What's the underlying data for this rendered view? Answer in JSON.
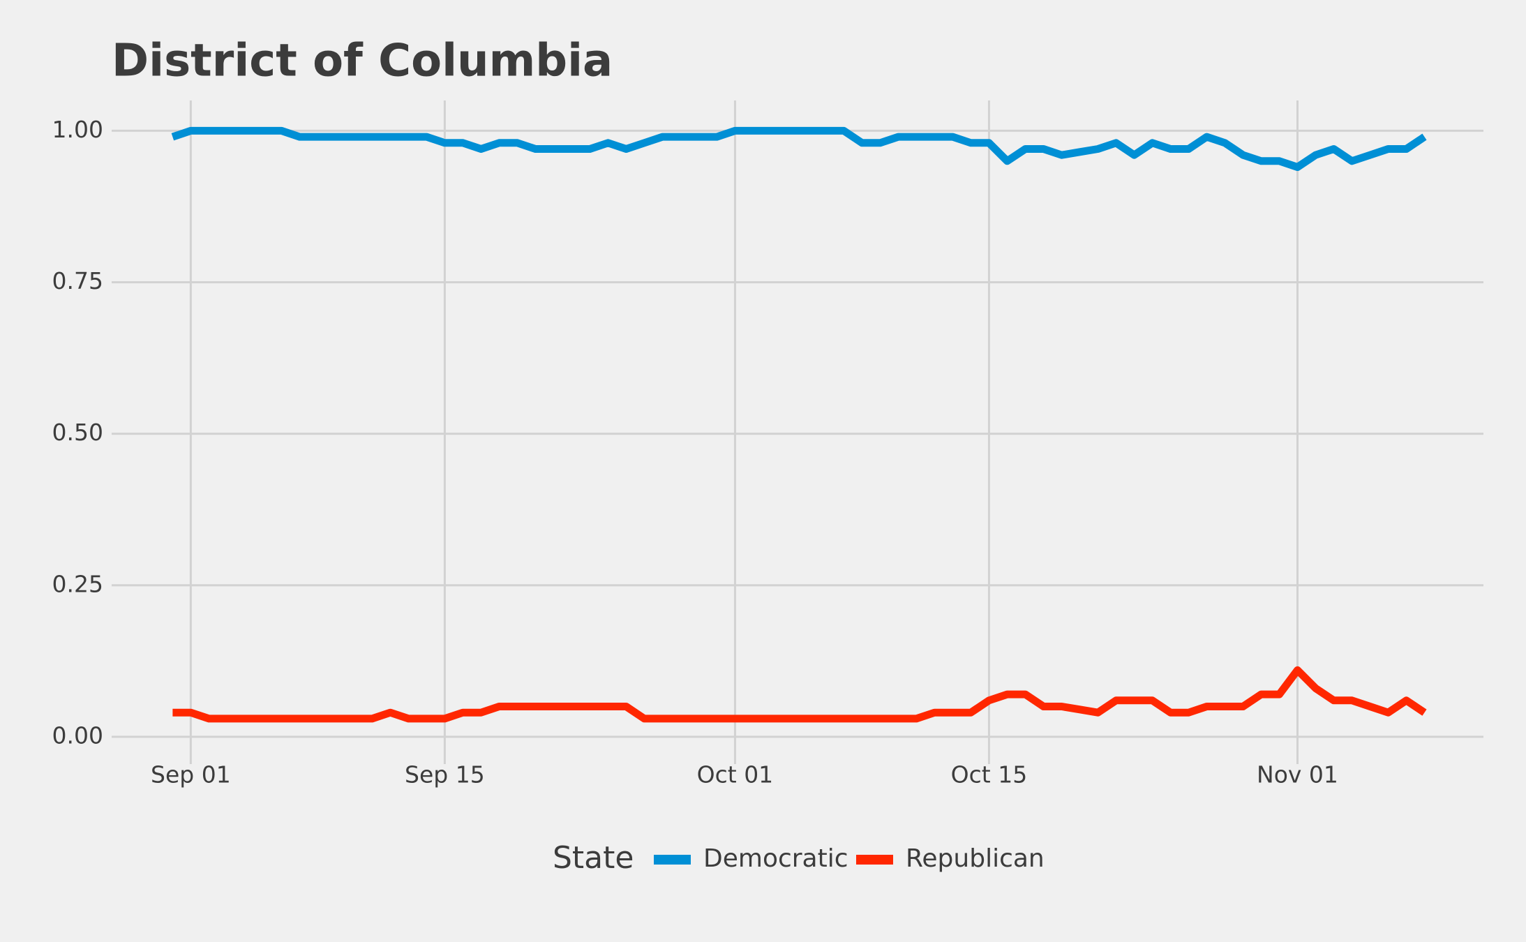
{
  "chart_data": {
    "type": "line",
    "title": "District of Columbia",
    "x": [
      "Aug 31",
      "Sep 01",
      "Sep 02",
      "Sep 03",
      "Sep 04",
      "Sep 05",
      "Sep 06",
      "Sep 07",
      "Sep 08",
      "Sep 09",
      "Sep 10",
      "Sep 11",
      "Sep 12",
      "Sep 13",
      "Sep 14",
      "Sep 15",
      "Sep 16",
      "Sep 17",
      "Sep 18",
      "Sep 19",
      "Sep 20",
      "Sep 21",
      "Sep 22",
      "Sep 23",
      "Sep 24",
      "Sep 25",
      "Sep 26",
      "Sep 27",
      "Sep 28",
      "Sep 29",
      "Sep 30",
      "Oct 01",
      "Oct 02",
      "Oct 03",
      "Oct 04",
      "Oct 05",
      "Oct 06",
      "Oct 07",
      "Oct 08",
      "Oct 09",
      "Oct 10",
      "Oct 11",
      "Oct 12",
      "Oct 13",
      "Oct 14",
      "Oct 15",
      "Oct 16",
      "Oct 17",
      "Oct 18",
      "Oct 19",
      "Oct 20",
      "Oct 21",
      "Oct 22",
      "Oct 23",
      "Oct 24",
      "Oct 25",
      "Oct 26",
      "Oct 27",
      "Oct 28",
      "Oct 29",
      "Oct 30",
      "Oct 31",
      "Nov 01",
      "Nov 02",
      "Nov 03",
      "Nov 04",
      "Nov 05",
      "Nov 06",
      "Nov 07",
      "Nov 08"
    ],
    "xticks": [
      "Sep 01",
      "Sep 15",
      "Oct 01",
      "Oct 15",
      "Nov 01"
    ],
    "series": [
      {
        "name": "Democratic",
        "color": "#008fd5",
        "values": [
          0.99,
          1,
          1,
          1,
          1,
          1,
          1,
          0.99,
          0.99,
          0.99,
          0.99,
          0.99,
          0.99,
          0.99,
          0.99,
          0.98,
          0.98,
          0.97,
          0.98,
          0.98,
          0.97,
          0.97,
          0.97,
          0.97,
          0.98,
          0.97,
          0.98,
          0.99,
          0.99,
          0.99,
          0.99,
          1,
          1,
          1,
          1,
          1,
          1,
          1,
          0.98,
          0.98,
          0.99,
          0.99,
          0.99,
          0.99,
          0.98,
          0.98,
          0.95,
          0.97,
          0.97,
          0.96,
          0.965,
          0.97,
          0.98,
          0.96,
          0.98,
          0.97,
          0.97,
          0.99,
          0.98,
          0.96,
          0.95,
          0.95,
          0.94,
          0.96,
          0.97,
          0.95,
          0.96,
          0.97,
          0.97,
          0.99
        ]
      },
      {
        "name": "Republican",
        "color": "#ff2700",
        "values": [
          0.04,
          0.04,
          0.03,
          0.03,
          0.03,
          0.03,
          0.03,
          0.03,
          0.03,
          0.03,
          0.03,
          0.03,
          0.04,
          0.03,
          0.03,
          0.03,
          0.04,
          0.04,
          0.05,
          0.05,
          0.05,
          0.05,
          0.05,
          0.05,
          0.05,
          0.05,
          0.03,
          0.03,
          0.03,
          0.03,
          0.03,
          0.03,
          0.03,
          0.03,
          0.03,
          0.03,
          0.03,
          0.03,
          0.03,
          0.03,
          0.03,
          0.03,
          0.04,
          0.04,
          0.04,
          0.06,
          0.07,
          0.07,
          0.05,
          0.05,
          0.045,
          0.04,
          0.06,
          0.06,
          0.06,
          0.04,
          0.04,
          0.05,
          0.05,
          0.05,
          0.07,
          0.07,
          0.11,
          0.08,
          0.06,
          0.06,
          0.05,
          0.04,
          0.06,
          0.04
        ]
      }
    ],
    "ylim": [
      -0.045,
      1.05
    ],
    "yticks": [
      {
        "value": 0,
        "label": "0.00"
      },
      {
        "value": 0.25,
        "label": "0.25"
      },
      {
        "value": 0.5,
        "label": "0.50"
      },
      {
        "value": 0.75,
        "label": "0.75"
      },
      {
        "value": 1,
        "label": "1.00"
      }
    ],
    "grid": true,
    "legend_title": "State",
    "legend": "bottom"
  }
}
